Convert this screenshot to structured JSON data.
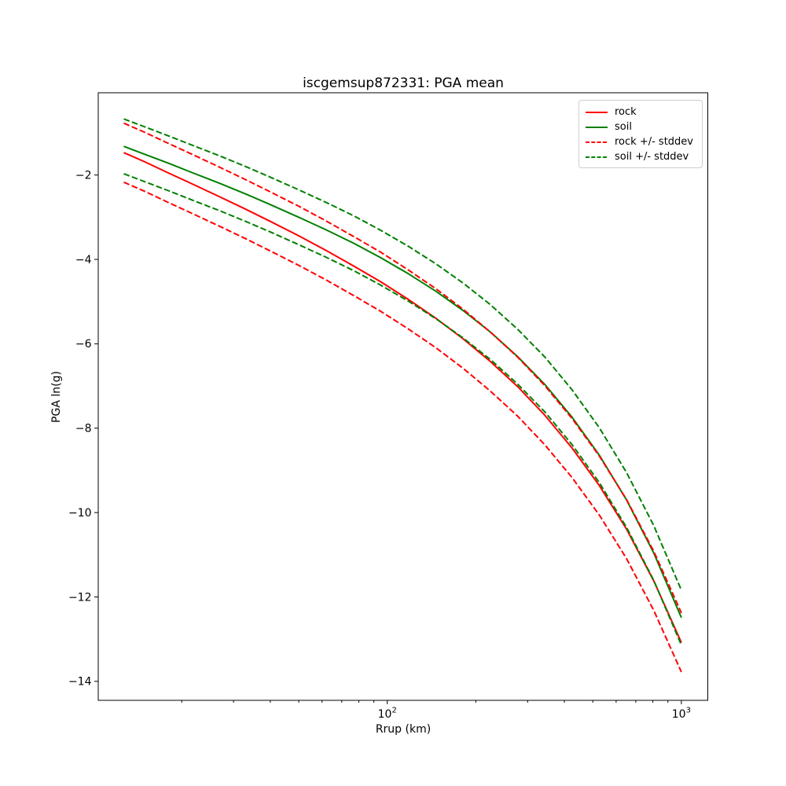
{
  "chart_data": {
    "type": "line",
    "title": "iscgemsup872331: PGA mean",
    "xlabel": "Rrup (km)",
    "ylabel": "PGA ln(g)",
    "x_scale": "log",
    "grid": false,
    "xlim": [
      10.4,
      1230
    ],
    "ylim": [
      -14.45,
      -0.05
    ],
    "x_major_ticks": [
      {
        "value": 100,
        "base": "10",
        "exponent": "2"
      },
      {
        "value": 1000,
        "base": "10",
        "exponent": "3"
      }
    ],
    "x_minor_ticks": [
      20,
      30,
      40,
      50,
      60,
      70,
      80,
      90,
      200,
      300,
      400,
      500,
      600,
      700,
      800,
      900
    ],
    "y_major_ticks": [
      {
        "value": -2,
        "label": "−2"
      },
      {
        "value": -4,
        "label": "−4"
      },
      {
        "value": -6,
        "label": "−6"
      },
      {
        "value": -8,
        "label": "−8"
      },
      {
        "value": -10,
        "label": "−10"
      },
      {
        "value": -12,
        "label": "−12"
      },
      {
        "value": -14,
        "label": "−14"
      }
    ],
    "x": [
      12.7,
      15,
      18,
      22,
      27,
      33,
      40,
      50,
      62,
      77,
      95,
      118,
      146,
      181,
      224,
      277,
      343,
      425,
      526,
      651,
      806,
      1000
    ],
    "series": [
      {
        "key": "rock-mean",
        "name": "rock",
        "color": "#ff0000",
        "style": "solid",
        "values": [
          -1.47,
          -1.69,
          -1.95,
          -2.23,
          -2.52,
          -2.81,
          -3.1,
          -3.44,
          -3.79,
          -4.16,
          -4.53,
          -4.95,
          -5.39,
          -5.88,
          -6.42,
          -7.01,
          -7.69,
          -8.47,
          -9.36,
          -10.39,
          -11.62,
          -13.08
        ]
      },
      {
        "key": "soil-mean",
        "name": "soil",
        "color": "#008000",
        "style": "solid",
        "values": [
          -1.32,
          -1.51,
          -1.72,
          -1.96,
          -2.2,
          -2.45,
          -2.7,
          -3.0,
          -3.3,
          -3.62,
          -3.96,
          -4.34,
          -4.75,
          -5.21,
          -5.72,
          -6.3,
          -6.96,
          -7.74,
          -8.64,
          -9.7,
          -10.96,
          -12.49
        ]
      },
      {
        "key": "rock-plus-stddev",
        "name": "rock + stddev",
        "color": "#ff0000",
        "style": "dashed",
        "values": [
          -0.77,
          -0.99,
          -1.25,
          -1.53,
          -1.82,
          -2.11,
          -2.4,
          -2.74,
          -3.09,
          -3.46,
          -3.83,
          -4.25,
          -4.69,
          -5.18,
          -5.72,
          -6.31,
          -6.99,
          -7.77,
          -8.66,
          -9.69,
          -10.92,
          -12.38
        ]
      },
      {
        "key": "rock-minus-stddev",
        "name": "rock - stddev",
        "color": "#ff0000",
        "style": "dashed",
        "values": [
          -2.17,
          -2.39,
          -2.65,
          -2.93,
          -3.22,
          -3.51,
          -3.8,
          -4.14,
          -4.49,
          -4.86,
          -5.23,
          -5.65,
          -6.09,
          -6.58,
          -7.12,
          -7.71,
          -8.39,
          -9.17,
          -10.06,
          -11.09,
          -12.32,
          -13.78
        ]
      },
      {
        "key": "soil-plus-stddev",
        "name": "soil + stddev",
        "color": "#008000",
        "style": "dashed",
        "values": [
          -0.67,
          -0.86,
          -1.07,
          -1.31,
          -1.55,
          -1.8,
          -2.05,
          -2.35,
          -2.65,
          -2.97,
          -3.31,
          -3.69,
          -4.1,
          -4.56,
          -5.07,
          -5.65,
          -6.31,
          -7.09,
          -7.99,
          -9.05,
          -10.31,
          -11.84
        ]
      },
      {
        "key": "soil-minus-stddev",
        "name": "soil - stddev",
        "color": "#008000",
        "style": "dashed",
        "values": [
          -1.97,
          -2.16,
          -2.37,
          -2.61,
          -2.85,
          -3.1,
          -3.35,
          -3.65,
          -3.95,
          -4.27,
          -4.61,
          -4.99,
          -5.4,
          -5.86,
          -6.37,
          -6.95,
          -7.61,
          -8.39,
          -9.29,
          -10.35,
          -11.61,
          -13.14
        ]
      }
    ],
    "stddev": {
      "rock": 0.7,
      "soil": 0.65
    },
    "legend": {
      "position": "upper right",
      "entries": [
        {
          "label": "rock",
          "color": "#ff0000",
          "style": "solid"
        },
        {
          "label": "soil",
          "color": "#008000",
          "style": "solid"
        },
        {
          "label": "rock +/- stddev",
          "color": "#ff0000",
          "style": "dashed"
        },
        {
          "label": "soil +/- stddev",
          "color": "#008000",
          "style": "dashed"
        }
      ]
    },
    "colors": {
      "rock": "#ff0000",
      "soil": "#008000",
      "text": "#000000",
      "spine": "#000000",
      "legend_border": "#cccccc"
    }
  }
}
